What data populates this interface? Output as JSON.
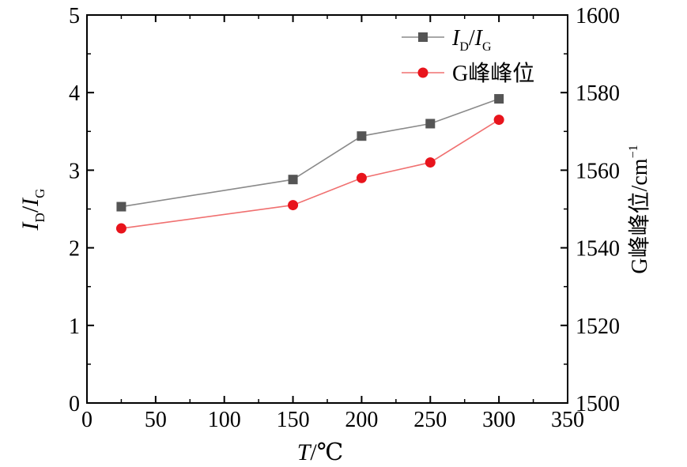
{
  "chart_data": {
    "type": "line",
    "title": "",
    "x": [
      25,
      150,
      200,
      250,
      300
    ],
    "x_axis": {
      "label_var": "T",
      "label_unit": "/℃",
      "range": [
        0,
        350
      ],
      "ticks": [
        0,
        50,
        100,
        150,
        200,
        250,
        300,
        350
      ]
    },
    "y_left": {
      "label_num": "I",
      "label_num_sub": "D",
      "label_den": "I",
      "label_den_sub": "G",
      "range": [
        0,
        5
      ],
      "ticks": [
        0,
        1,
        2,
        3,
        4,
        5
      ]
    },
    "y_right": {
      "label": "G峰峰位",
      "label_unit": "/cm",
      "label_unit_sup": "−1",
      "range": [
        1500,
        1600
      ],
      "ticks": [
        1500,
        1520,
        1540,
        1560,
        1580,
        1600
      ]
    },
    "series": [
      {
        "legend_num": "I",
        "legend_num_sub": "D",
        "legend_den": "I",
        "legend_den_sub": "G",
        "axis": "left",
        "marker": "square",
        "color": "#555555",
        "line_color": "#8a8a8a",
        "values": [
          2.53,
          2.88,
          3.44,
          3.6,
          3.92
        ]
      },
      {
        "name": "G峰峰位",
        "axis": "right",
        "marker": "circle",
        "color": "#e8141c",
        "line_color": "#f07070",
        "values": [
          1545,
          1551,
          1558,
          1562,
          1573
        ]
      }
    ],
    "legend_position": "top-right",
    "grid": false
  }
}
